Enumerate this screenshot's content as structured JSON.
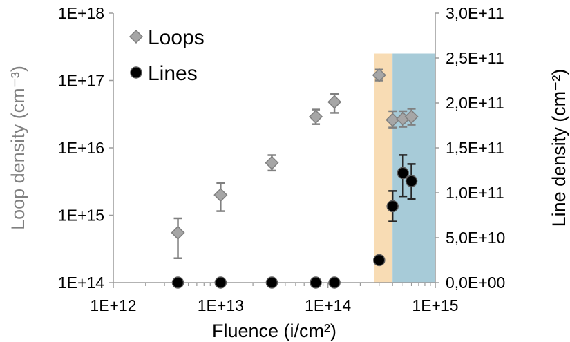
{
  "chart_data": {
    "type": "scatter",
    "xlabel": "Fluence (i/cm²)",
    "ylabel_left": "Loop density (cm⁻³)",
    "ylabel_right": "Line density (cm⁻²)",
    "x_scale": "log",
    "y_left_scale": "log",
    "xlim": [
      1000000000000.0,
      1000000000000000.0
    ],
    "ylim_left": [
      100000000000000.0,
      1e+18
    ],
    "ylim_right": [
      0,
      300000000000.0
    ],
    "x_ticks": [
      "1E+12",
      "1E+13",
      "1E+14",
      "1E+15"
    ],
    "y_left_ticks": [
      "1E+14",
      "1E+15",
      "1E+16",
      "1E+17",
      "1E+18"
    ],
    "y_right_ticks": [
      "0,0E+00",
      "5,0E+10",
      "1,0E+11",
      "1,5E+11",
      "2,0E+11",
      "2,5E+11",
      "3,0E+11"
    ],
    "grid": false,
    "legend_position": "top-left",
    "shaded_regions": [
      {
        "x_start": 270000000000000.0,
        "x_end": 400000000000000.0,
        "y_top_right": 255000000000.0,
        "color": "#f8dcb4"
      },
      {
        "x_start": 400000000000000.0,
        "x_end": 1000000000000000.0,
        "y_top_right": 255000000000.0,
        "color": "#a7cbd8"
      }
    ],
    "series": [
      {
        "name": "Loops",
        "axis": "left",
        "marker": "diamond",
        "color": "#a6a6a6",
        "edge_color": "#808080",
        "points": [
          {
            "x": 4000000000000.0,
            "y": 550000000000000.0,
            "err_low": 230000000000000.0,
            "err_high": 900000000000000.0
          },
          {
            "x": 10000000000000.0,
            "y": 2000000000000000.0,
            "err_low": 1150000000000000.0,
            "err_high": 3000000000000000.0
          },
          {
            "x": 30000000000000.0,
            "y": 6000000000000000.0,
            "err_low": 4600000000000000.0,
            "err_high": 7800000000000000.0
          },
          {
            "x": 77000000000000.0,
            "y": 2.9e+16,
            "err_low": 2.25e+16,
            "err_high": 3.7e+16
          },
          {
            "x": 115000000000000.0,
            "y": 4.8e+16,
            "err_low": 3.3e+16,
            "err_high": 6.3e+16
          },
          {
            "x": 300000000000000.0,
            "y": 1.2e+17,
            "err_low": 1e+17,
            "err_high": 1.45e+17
          },
          {
            "x": 400000000000000.0,
            "y": 2.6e+16,
            "err_low": 2e+16,
            "err_high": 3.5e+16
          },
          {
            "x": 500000000000000.0,
            "y": 2.7e+16,
            "err_low": 2.05e+16,
            "err_high": 3.5e+16
          },
          {
            "x": 600000000000000.0,
            "y": 2.9e+16,
            "err_low": 2.2e+16,
            "err_high": 3.8e+16
          }
        ]
      },
      {
        "name": "Lines",
        "axis": "right",
        "marker": "circle",
        "color": "#000000",
        "edge_color": "#595959",
        "points": [
          {
            "x": 4000000000000.0,
            "y": 0
          },
          {
            "x": 10000000000000.0,
            "y": 0
          },
          {
            "x": 30000000000000.0,
            "y": 0
          },
          {
            "x": 77000000000000.0,
            "y": 0
          },
          {
            "x": 115000000000000.0,
            "y": 0
          },
          {
            "x": 300000000000000.0,
            "y": 25000000000.0
          },
          {
            "x": 400000000000000.0,
            "y": 85000000000.0,
            "err_low": 68000000000.0,
            "err_high": 102000000000.0
          },
          {
            "x": 500000000000000.0,
            "y": 122000000000.0,
            "err_low": 96000000000.0,
            "err_high": 142000000000.0
          },
          {
            "x": 600000000000000.0,
            "y": 113000000000.0,
            "err_low": 93000000000.0,
            "err_high": 132000000000.0
          }
        ]
      }
    ]
  }
}
